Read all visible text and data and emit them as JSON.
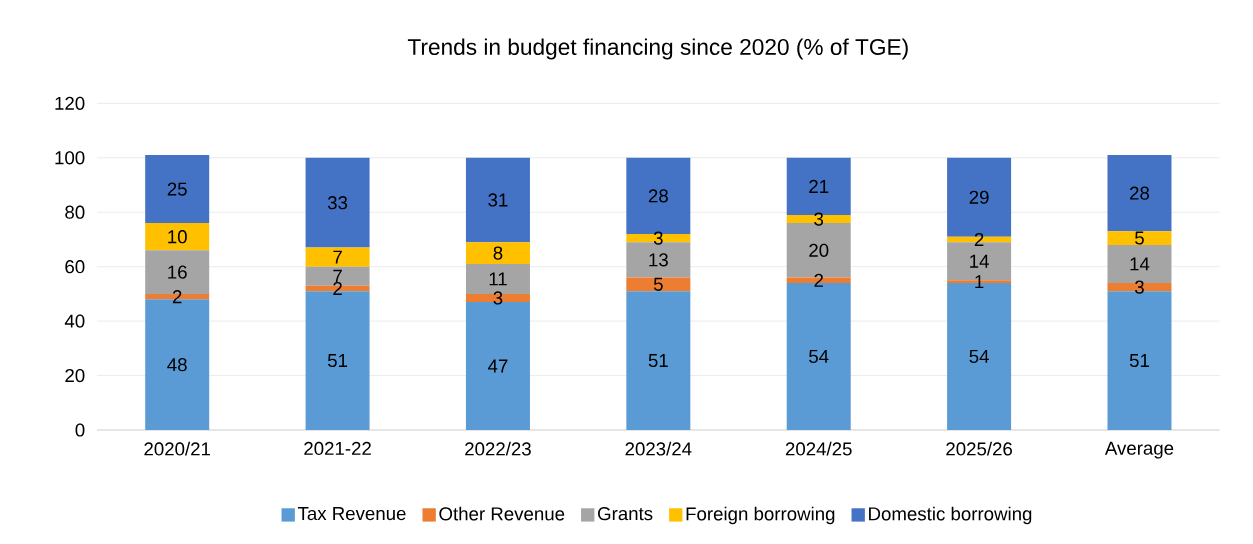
{
  "chart_data": {
    "type": "bar",
    "title": "Trends in budget financing since 2020 (% of TGE)",
    "categories": [
      "2020/21",
      "2021-22",
      "2022/23",
      "2023/24",
      "2024/25",
      "2025/26",
      "Average"
    ],
    "stacked": true,
    "data_labels": true,
    "grid": "y",
    "legend": "bottom",
    "ylim": [
      0,
      120
    ],
    "yticks": [
      0,
      20,
      40,
      60,
      80,
      100,
      120
    ],
    "series": [
      {
        "name": "Tax Revenue",
        "color": "#5b9bd5",
        "values": [
          48,
          51,
          47,
          51,
          54,
          54,
          51
        ]
      },
      {
        "name": "Other Revenue",
        "color": "#ed7d31",
        "values": [
          2,
          2,
          3,
          5,
          2,
          1,
          3
        ]
      },
      {
        "name": "Grants",
        "color": "#a5a5a5",
        "values": [
          16,
          7,
          11,
          13,
          20,
          14,
          14
        ]
      },
      {
        "name": "Foreign borrowing",
        "color": "#ffc000",
        "values": [
          10,
          7,
          8,
          3,
          3,
          2,
          5
        ]
      },
      {
        "name": "Domestic borrowing",
        "color": "#4472c4",
        "values": [
          25,
          33,
          31,
          28,
          21,
          29,
          28
        ]
      }
    ]
  }
}
